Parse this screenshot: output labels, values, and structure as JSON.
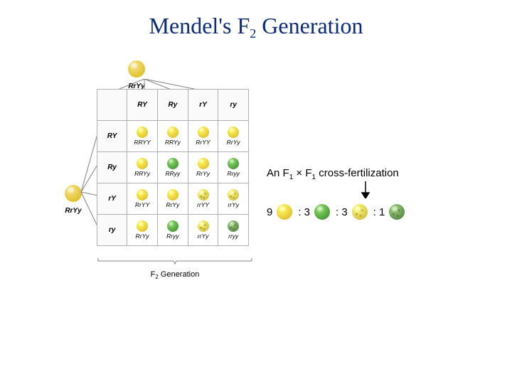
{
  "title_pre": "Mendel's F",
  "title_sub": "2",
  "title_post": " Generation",
  "punnett": {
    "parent_genotype": "RrYy",
    "col_gametes": [
      "RY",
      "Ry",
      "rY",
      "ry"
    ],
    "row_gametes": [
      "RY",
      "Ry",
      "rY",
      "ry"
    ],
    "cells": [
      [
        {
          "geno": "RRYY",
          "color": "#e3c22f",
          "wrinkled": false
        },
        {
          "geno": "RRYy",
          "color": "#e3c22f",
          "wrinkled": false
        },
        {
          "geno": "RrYY",
          "color": "#e3c22f",
          "wrinkled": false
        },
        {
          "geno": "RrYy",
          "color": "#e3c22f",
          "wrinkled": false
        }
      ],
      [
        {
          "geno": "RRYy",
          "color": "#e3c22f",
          "wrinkled": false
        },
        {
          "geno": "RRyy",
          "color": "#4a9a3a",
          "wrinkled": false
        },
        {
          "geno": "RrYy",
          "color": "#e3c22f",
          "wrinkled": false
        },
        {
          "geno": "Rryy",
          "color": "#4a9a3a",
          "wrinkled": false
        }
      ],
      [
        {
          "geno": "RrYY",
          "color": "#e3c22f",
          "wrinkled": false
        },
        {
          "geno": "RrYy",
          "color": "#e3c22f",
          "wrinkled": false
        },
        {
          "geno": "rrYY",
          "color": "#d6c247",
          "wrinkled": true
        },
        {
          "geno": "rrYy",
          "color": "#d6c247",
          "wrinkled": true
        }
      ],
      [
        {
          "geno": "RrYy",
          "color": "#e3c22f",
          "wrinkled": false
        },
        {
          "geno": "Rryy",
          "color": "#4a9a3a",
          "wrinkled": false
        },
        {
          "geno": "rrYy",
          "color": "#d6c247",
          "wrinkled": true
        },
        {
          "geno": "rryy",
          "color": "#5a8c4a",
          "wrinkled": true
        }
      ]
    ],
    "f2_label_pre": "F",
    "f2_label_sub": "2",
    "f2_label_post": " Generation"
  },
  "cross_text": {
    "pre": "An F",
    "s1": "1",
    "mid": " × F",
    "s2": "1",
    "post": " cross-fertilization"
  },
  "ratio": [
    {
      "n": "9",
      "color": "#e3c22f",
      "wrinkled": false
    },
    {
      "n": ": 3",
      "color": "#4a9a3a",
      "wrinkled": false
    },
    {
      "n": ": 3",
      "color": "#d6c247",
      "wrinkled": true
    },
    {
      "n": ": 1",
      "color": "#5a8c4a",
      "wrinkled": true
    }
  ],
  "colors": {
    "title": "#0a2a7a",
    "grid": "#b0b0b0",
    "bg": "#ffffff",
    "parent_pea": "#e3c22f"
  },
  "fonts": {
    "title_size": 32,
    "body_size": 15,
    "table_size": 10,
    "geno_size": 8.5
  }
}
